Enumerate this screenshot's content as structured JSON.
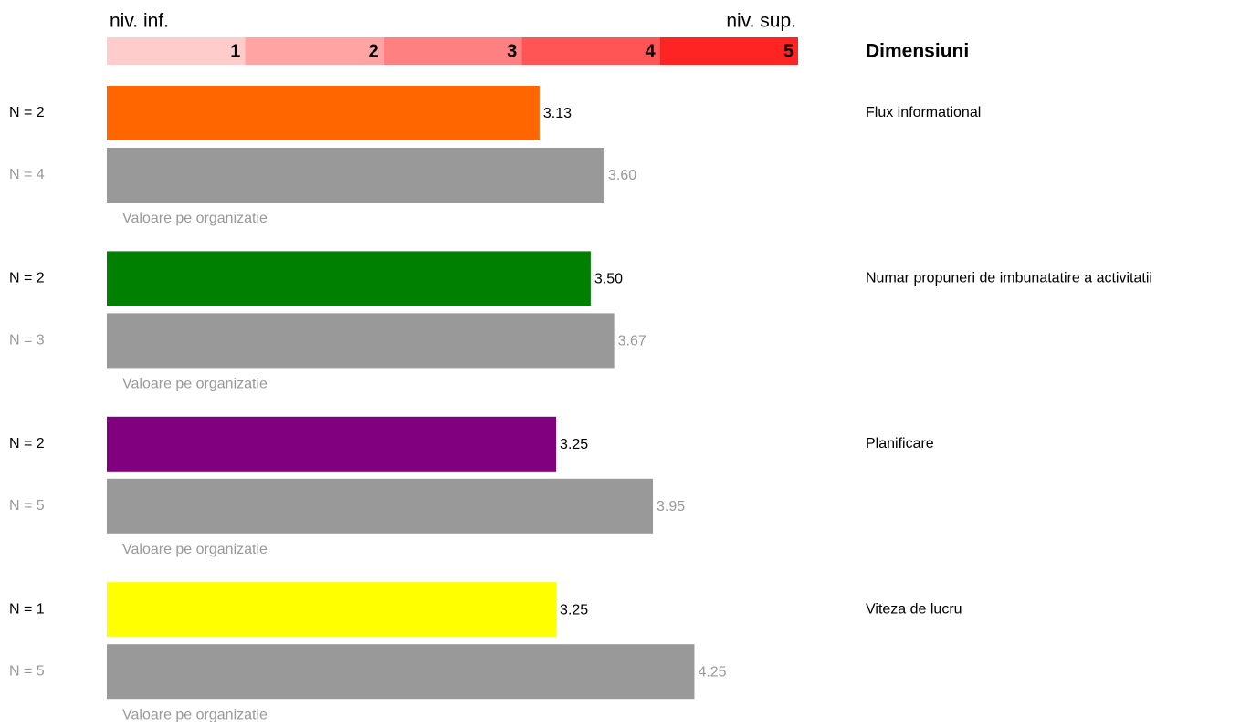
{
  "chart_data": {
    "type": "bar",
    "xlim": [
      0,
      5
    ],
    "scale": {
      "low_label": "niv. inf.",
      "high_label": "niv. sup.",
      "levels": [
        1,
        2,
        3,
        4,
        5
      ],
      "colors": [
        "#ffcccc",
        "#ffa3a3",
        "#ff8080",
        "#ff5555",
        "#ff2424"
      ]
    },
    "legend_title": "Dimensiuni",
    "groups": [
      {
        "name": "Flux informational",
        "color": "#ff6600",
        "n_label": "N = 2",
        "value": 3.13,
        "org_n_label": "N = 4",
        "org_value": 3.6,
        "org_value_label": "3.60",
        "org_color": "#999999",
        "org_caption": "Valoare pe organizatie"
      },
      {
        "name": "Numar propuneri de imbunatatire a activitatii",
        "color": "#008000",
        "n_label": "N = 2",
        "value": 3.5,
        "value_label": "3.50",
        "org_n_label": "N = 3",
        "org_value": 3.67,
        "org_color": "#999999",
        "org_caption": "Valoare pe organizatie"
      },
      {
        "name": "Planificare",
        "color": "#800080",
        "n_label": "N = 2",
        "value": 3.25,
        "org_n_label": "N = 5",
        "org_value": 3.95,
        "org_color": "#999999",
        "org_caption": "Valoare pe organizatie"
      },
      {
        "name": "Viteza de lucru",
        "color": "#ffff00",
        "n_label": "N = 1",
        "value": 3.25,
        "org_n_label": "N = 5",
        "org_value": 4.25,
        "org_color": "#999999",
        "org_caption": "Valoare pe organizatie"
      }
    ]
  }
}
